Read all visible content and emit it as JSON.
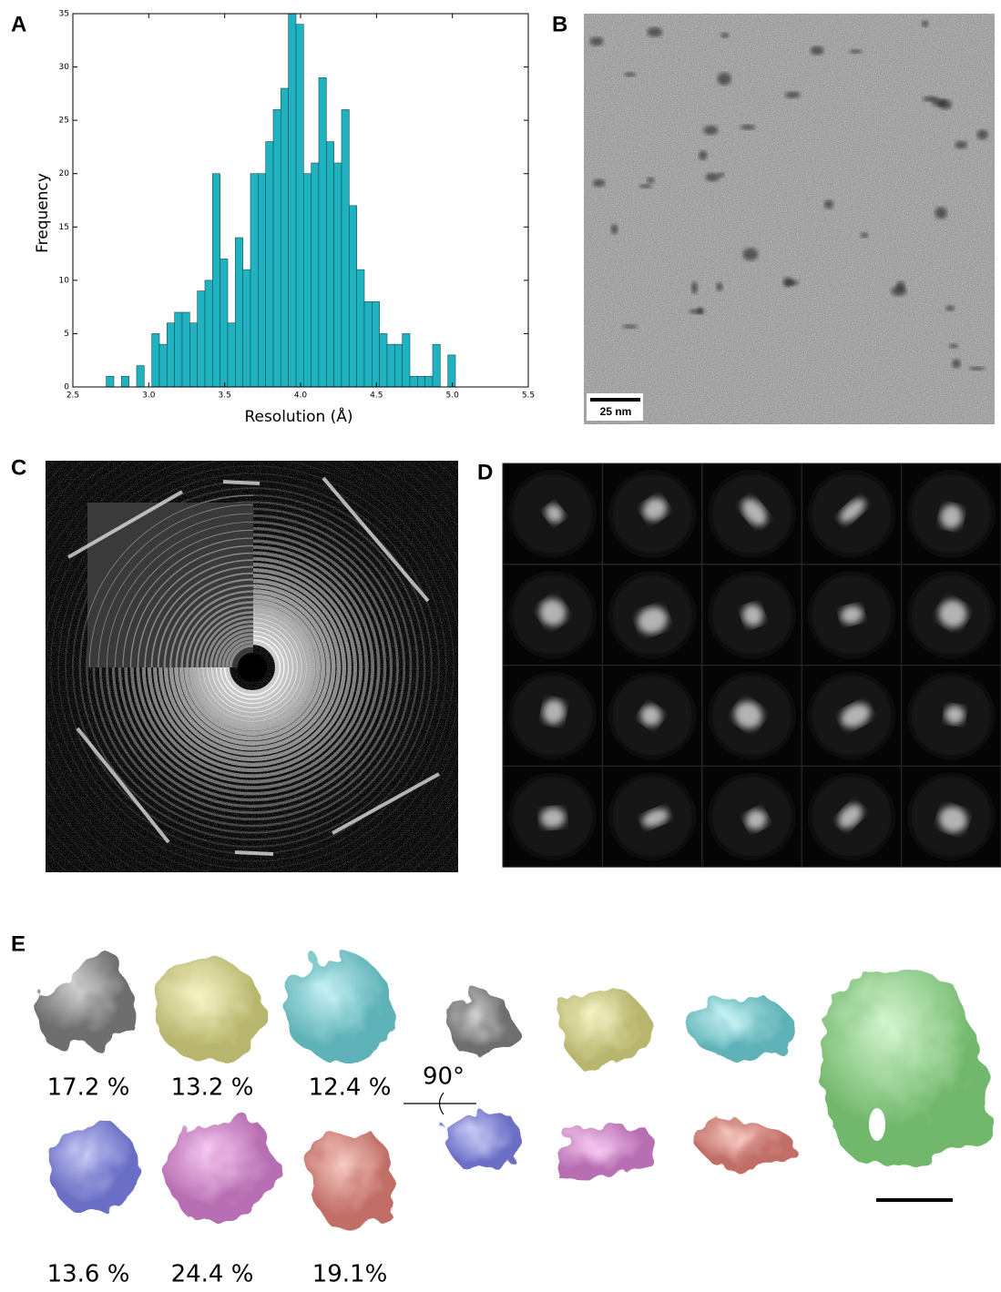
{
  "panel_labels": [
    "A",
    "B",
    "C",
    "D",
    "E"
  ],
  "chart_data": {
    "type": "histogram",
    "xlabel": "Resolution (Å)",
    "ylabel": "Frequency",
    "bins": [
      2.72,
      2.77,
      2.82,
      2.87,
      2.92,
      2.97,
      3.02,
      3.07,
      3.12,
      3.17,
      3.22,
      3.27,
      3.32,
      3.37,
      3.42,
      3.47,
      3.52,
      3.57,
      3.62,
      3.67,
      3.72,
      3.77,
      3.82,
      3.87,
      3.92,
      3.97,
      4.02,
      4.07,
      4.12,
      4.17,
      4.22,
      4.27,
      4.32,
      4.37,
      4.42,
      4.47,
      4.52,
      4.57,
      4.62,
      4.67,
      4.72,
      4.77,
      4.82,
      4.87,
      4.92,
      4.97,
      5.02
    ],
    "values": [
      1,
      0,
      1,
      0,
      2,
      0,
      5,
      4,
      6,
      7,
      7,
      6,
      9,
      10,
      20,
      12,
      6,
      14,
      11,
      20,
      20,
      23,
      26,
      28,
      35,
      34,
      20,
      21,
      29,
      23,
      21,
      26,
      17,
      11,
      8,
      8,
      5,
      4,
      4,
      5,
      1,
      1,
      1,
      4,
      0,
      3
    ],
    "color": "#1fb3c2",
    "xlim": [
      2.5,
      5.5
    ],
    "xticks": [
      2.5,
      {
        "value": 3,
        "label": "3.0"
      },
      3.5,
      {
        "value": 4,
        "label": "4.0"
      },
      4.5,
      {
        "value": 5,
        "label": "5.0"
      },
      5.5
    ],
    "ylim": [
      0,
      35
    ],
    "yticks": [
      0,
      5,
      10,
      15,
      20,
      25,
      30,
      35
    ]
  },
  "micrograph": {
    "scale_bar_label": "25 nm"
  },
  "classes": {
    "percentages": [
      "17.2 %",
      "13.2 %",
      "12.4 %",
      "13.6 %",
      "24.4 %",
      "19.1%"
    ],
    "rotation_label": "90°"
  }
}
